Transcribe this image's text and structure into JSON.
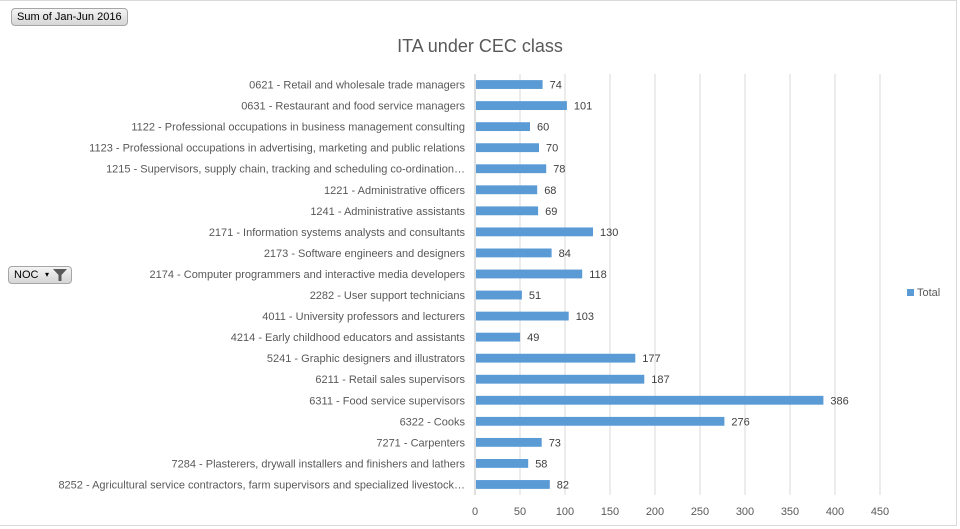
{
  "pivot": {
    "value_field": "Sum of Jan-Jun 2016",
    "row_field": "NOC"
  },
  "legend": {
    "label": "Total",
    "color": "#5b9bd5"
  },
  "chart_data": {
    "type": "bar",
    "orientation": "horizontal",
    "title": "ITA under CEC class",
    "xlabel": "",
    "ylabel": "",
    "xlim": [
      0,
      450
    ],
    "xticks": [
      0,
      50,
      100,
      150,
      200,
      250,
      300,
      350,
      400,
      450
    ],
    "grid": true,
    "legend_position": "right",
    "categories": [
      "0621 - Retail and wholesale trade managers",
      "0631 - Restaurant and food service managers",
      "1122 - Professional occupations in business management consulting",
      "1123 - Professional occupations in advertising, marketing and public relations",
      "1215 - Supervisors, supply chain, tracking and scheduling co-ordination…",
      "1221 - Administrative officers",
      "1241 - Administrative assistants",
      "2171 - Information systems analysts and consultants",
      "2173 - Software engineers and designers",
      "2174 - Computer programmers and interactive media developers",
      "2282 - User support technicians",
      "4011 - University professors and lecturers",
      "4214 - Early childhood educators and assistants",
      "5241 - Graphic designers and illustrators",
      "6211 - Retail sales supervisors",
      "6311 - Food service supervisors",
      "6322 - Cooks",
      "7271 - Carpenters",
      "7284 - Plasterers, drywall installers and finishers and lathers",
      "8252 - Agricultural service contractors, farm supervisors and specialized livestock…"
    ],
    "series": [
      {
        "name": "Total",
        "color": "#5b9bd5",
        "values": [
          74,
          101,
          60,
          70,
          78,
          68,
          69,
          130,
          84,
          118,
          51,
          103,
          49,
          177,
          187,
          386,
          276,
          73,
          58,
          82
        ]
      }
    ]
  }
}
